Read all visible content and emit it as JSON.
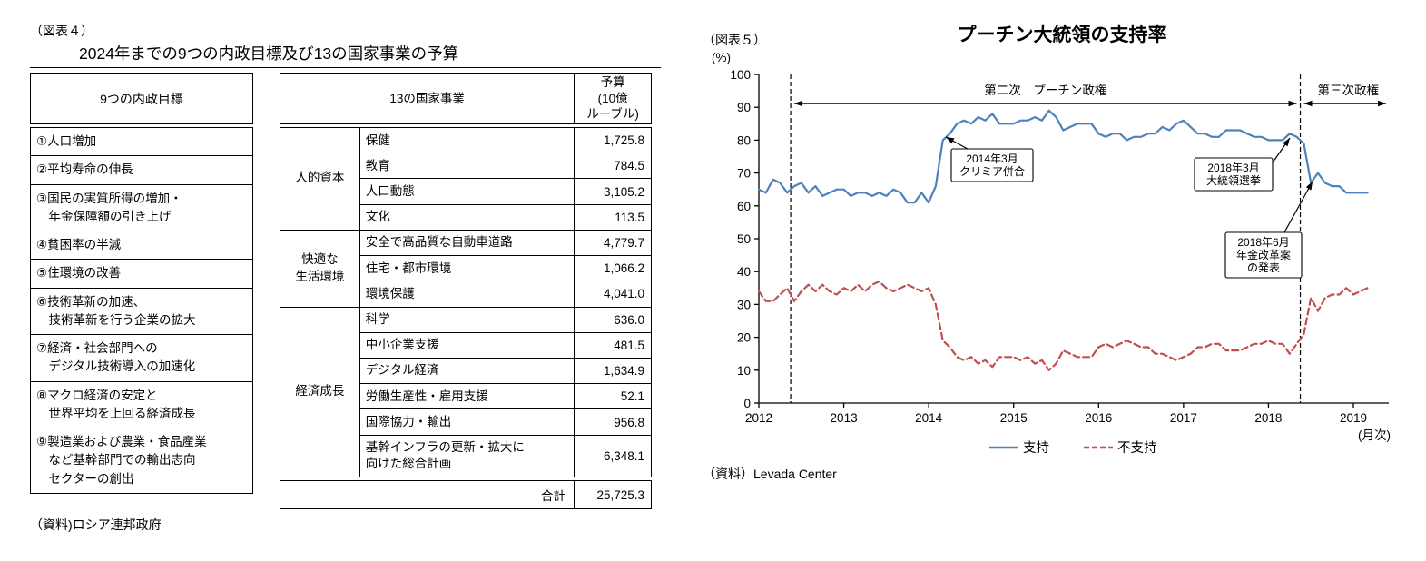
{
  "figure4": {
    "tag": "（図表４）",
    "title": "2024年までの9つの内政目標及び13の国家事業の予算",
    "goals_table": {
      "header": "9つの内政目標",
      "rows": [
        "①人口増加",
        "②平均寿命の伸長",
        "③国民の実質所得の増加・\n　年金保障額の引き上げ",
        "④貧困率の半減",
        "⑤住環境の改善",
        "⑥技術革新の加速、\n　技術革新を行う企業の拡大",
        "⑦経済・社会部門への\n　デジタル技術導入の加速化",
        "⑧マクロ経済の安定と\n　世界平均を上回る経済成長",
        "⑨製造業および農業・食品産業\n　など基幹部門での輸出志向\n　セクターの創出"
      ]
    },
    "projects_table": {
      "header_projects": "13の国家事業",
      "header_budget": "予算\n(10億\nルーブル)",
      "groups": [
        {
          "category": "人的資本",
          "items": [
            {
              "name": "保健",
              "budget": "1,725.8"
            },
            {
              "name": "教育",
              "budget": "784.5"
            },
            {
              "name": "人口動態",
              "budget": "3,105.2"
            },
            {
              "name": "文化",
              "budget": "113.5"
            }
          ]
        },
        {
          "category": "快適な\n生活環境",
          "items": [
            {
              "name": "安全で高品質な自動車道路",
              "budget": "4,779.7"
            },
            {
              "name": "住宅・都市環境",
              "budget": "1,066.2"
            },
            {
              "name": "環境保護",
              "budget": "4,041.0"
            }
          ]
        },
        {
          "category": "経済成長",
          "items": [
            {
              "name": "科学",
              "budget": "636.0"
            },
            {
              "name": "中小企業支援",
              "budget": "481.5"
            },
            {
              "name": "デジタル経済",
              "budget": "1,634.9"
            },
            {
              "name": "労働生産性・雇用支援",
              "budget": "52.1"
            },
            {
              "name": "国際協力・輸出",
              "budget": "956.8"
            },
            {
              "name": "基幹インフラの更新・拡大に\n向けた総合計画",
              "budget": "6,348.1"
            }
          ]
        }
      ],
      "total_label": "合計",
      "total_value": "25,725.3"
    },
    "source": "（資料)ロシア連邦政府"
  },
  "figure5": {
    "tag": "（図表５）",
    "title": "プーチン大統領の支持率",
    "source": "（資料）Levada Center"
  },
  "chart_data": {
    "type": "line",
    "title": "プーチン大統領の支持率",
    "y_axis_label": "(%)",
    "x_axis_label": "(月次)",
    "x_start": "2012-01",
    "frequency": "monthly",
    "x_tick_labels": [
      "2012",
      "2013",
      "2014",
      "2015",
      "2016",
      "2017",
      "2018",
      "2019"
    ],
    "ylim": [
      0,
      100
    ],
    "y_tick_step": 10,
    "grid": false,
    "legend_position": "bottom",
    "series": [
      {
        "name": "支持",
        "color": "#4F81BD",
        "style": "solid",
        "values": [
          65,
          64,
          68,
          67,
          64,
          66,
          67,
          64,
          66,
          63,
          64,
          65,
          65,
          63,
          64,
          64,
          63,
          64,
          63,
          65,
          64,
          61,
          61,
          64,
          61,
          66,
          80,
          82,
          85,
          86,
          85,
          87,
          86,
          88,
          85,
          85,
          85,
          86,
          86,
          87,
          86,
          89,
          87,
          83,
          84,
          85,
          85,
          85,
          82,
          81,
          82,
          82,
          80,
          81,
          81,
          82,
          82,
          84,
          83,
          85,
          86,
          84,
          82,
          82,
          81,
          81,
          83,
          83,
          83,
          82,
          81,
          81,
          80,
          80,
          80,
          82,
          81,
          79,
          67,
          70,
          67,
          66,
          66,
          64,
          64,
          64,
          64
        ]
      },
      {
        "name": "不支持",
        "color": "#C0504D",
        "style": "dashed",
        "values": [
          34,
          31,
          31,
          33,
          35,
          31,
          34,
          36,
          34,
          36,
          34,
          33,
          35,
          34,
          36,
          34,
          36,
          37,
          35,
          34,
          35,
          36,
          35,
          34,
          35,
          30,
          19,
          17,
          14,
          13,
          14,
          12,
          13,
          11,
          14,
          14,
          14,
          13,
          14,
          12,
          13,
          10,
          12,
          16,
          15,
          14,
          14,
          14,
          17,
          18,
          17,
          18,
          19,
          18,
          17,
          17,
          15,
          15,
          14,
          13,
          14,
          15,
          17,
          17,
          18,
          18,
          16,
          16,
          16,
          17,
          18,
          18,
          19,
          18,
          18,
          15,
          18,
          21,
          32,
          28,
          32,
          33,
          33,
          35,
          33,
          34,
          35
        ]
      }
    ],
    "era_annotations": [
      {
        "label": "第二次　プーチン政権",
        "from": "2012-05",
        "to": "2018-05"
      },
      {
        "label": "第三次政権",
        "from": "2018-05",
        "to": "end"
      }
    ],
    "callouts": [
      {
        "text": "2014年3月\nクリミア併合",
        "points_to": "2014-03"
      },
      {
        "text": "2018年3月\n大統領選挙",
        "points_to": "2018-03"
      },
      {
        "text": "2018年6月\n年金改革案\nの発表",
        "points_to": "2018-06"
      }
    ],
    "legend": [
      "支持",
      "不支持"
    ]
  }
}
